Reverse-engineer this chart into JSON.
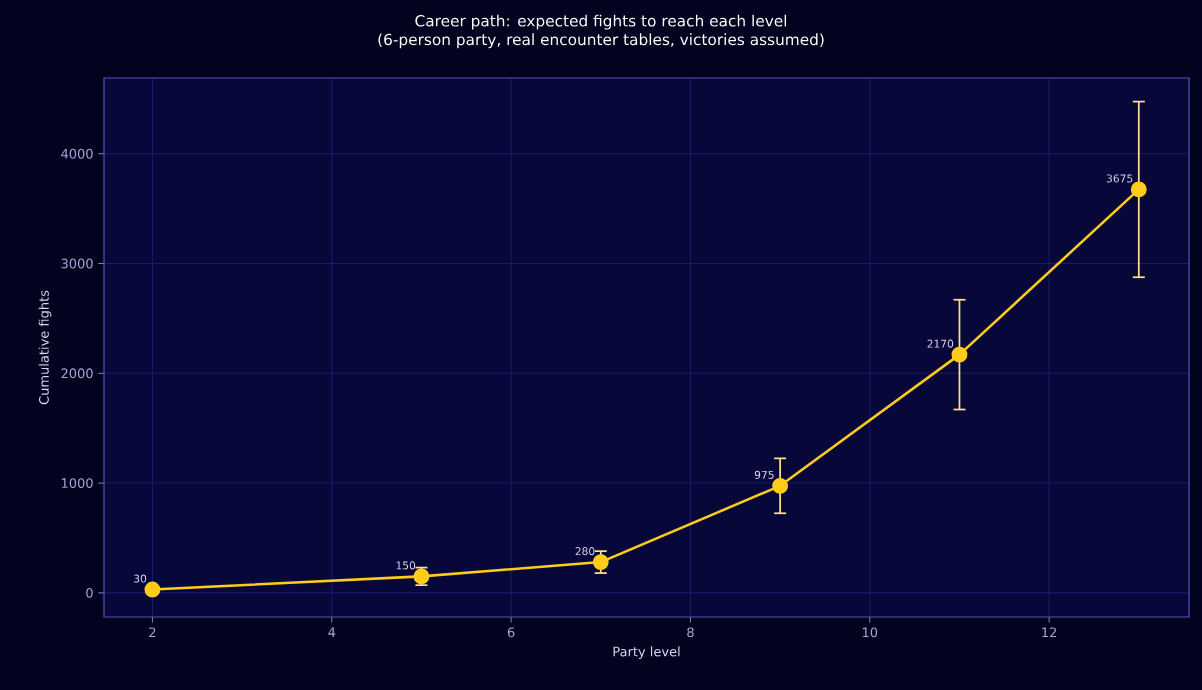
{
  "chart_data": {
    "type": "line",
    "title": "Career path: expected fights to reach each level",
    "subtitle": "(6-person party, real encounter tables, victories assumed)",
    "xlabel": "Party level",
    "ylabel": "Cumulative fights",
    "x": [
      2,
      5,
      7,
      9,
      11,
      13
    ],
    "values": [
      30,
      150,
      280,
      975,
      2170,
      3675
    ],
    "errors": [
      null,
      80,
      100,
      250,
      500,
      800
    ],
    "color": "#ffcc1a",
    "marker": "circle",
    "line_style": "solid",
    "data_labels": true,
    "grid": true,
    "xlim": [
      1.46,
      13.56
    ],
    "ylim": [
      -220,
      4690
    ],
    "xticks": [
      2,
      4,
      6,
      8,
      10,
      12
    ],
    "yticks": [
      0,
      1000,
      2000,
      3000,
      4000
    ]
  }
}
